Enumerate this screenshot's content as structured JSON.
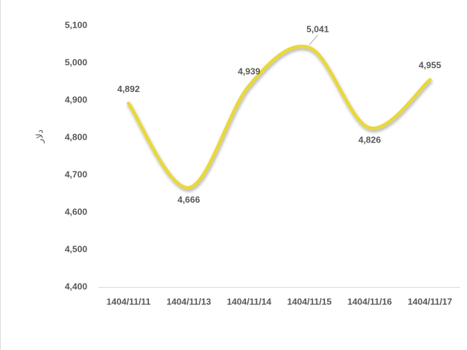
{
  "chart_data": {
    "type": "line",
    "y_label": "دلار",
    "categories": [
      "1404/11/11",
      "1404/11/13",
      "1404/11/14",
      "1404/11/15",
      "1404/11/16",
      "1404/11/17"
    ],
    "values": [
      4892,
      4666,
      4939,
      5041,
      4826,
      4955
    ],
    "value_labels": [
      "4,892",
      "4,666",
      "4,939",
      "5,041",
      "4,826",
      "4,955"
    ],
    "color": "#e8d83a",
    "smooth": true,
    "ylim": [
      4400,
      5100
    ],
    "yticks": [
      {
        "value": 4400,
        "label": "4,400"
      },
      {
        "value": 4500,
        "label": "4,500"
      },
      {
        "value": 4600,
        "label": "4,600"
      },
      {
        "value": 4700,
        "label": "4,700"
      },
      {
        "value": 4800,
        "label": "4,800"
      },
      {
        "value": 4900,
        "label": "4,900"
      },
      {
        "value": 5000,
        "label": "5,000"
      },
      {
        "value": 5100,
        "label": "5,100"
      }
    ],
    "grid": false
  }
}
